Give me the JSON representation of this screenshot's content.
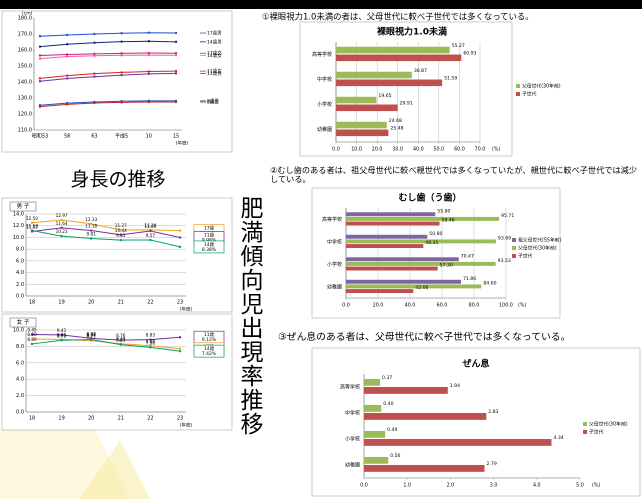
{
  "slide": {
    "height_heading": "身長の推移",
    "obesity_heading": "肥満傾向児出現率推移",
    "vision_heading": "①裸眼視力1.0未満の者は、父母世代に較べ子世代では多くなっている。",
    "caries_heading": "②むし歯のある者は、祖父母世代に較べ親世代では多くなっていたが、親世代に較べ子世代では減少している。",
    "asthma_heading": "③ぜん息のある者は、父母世代に較べ子世代では多くなっている。"
  },
  "chart_data": [
    {
      "type": "line",
      "y_label": "(cm)",
      "x_label": "(年度)",
      "categories": [
        "昭和53",
        "58",
        "63",
        "平成5",
        "10",
        "15"
      ],
      "ylim": [
        110,
        180
      ],
      "yticks": [
        {
          "value": 110,
          "label": "110.0"
        },
        {
          "value": 120,
          "label": "120.0"
        },
        {
          "value": 130,
          "label": "130.0"
        },
        {
          "value": 140,
          "label": "140.0"
        },
        {
          "value": 150,
          "label": "150.0"
        },
        {
          "value": 160,
          "label": "160.0"
        },
        {
          "value": 170,
          "label": "170.0"
        },
        {
          "value": 180,
          "label": "180.0"
        }
      ],
      "grid": false,
      "series": [
        {
          "name": "17歳男",
          "color": "#1f4fd0",
          "values": [
            168.6,
            169.4,
            170.0,
            170.5,
            170.8,
            170.6
          ]
        },
        {
          "name": "14歳男",
          "color": "#1a237e",
          "values": [
            162.1,
            163.6,
            164.5,
            165.2,
            165.5,
            165.1
          ]
        },
        {
          "name": "17歳女",
          "color": "#d01c8b",
          "values": [
            156.6,
            157.2,
            157.6,
            157.9,
            158.1,
            158.0
          ]
        },
        {
          "name": "14歳女",
          "color": "#f06090",
          "values": [
            154.6,
            155.9,
            156.4,
            156.7,
            156.8,
            156.7
          ]
        },
        {
          "name": "11歳女",
          "color": "#e02020",
          "values": [
            142.3,
            144.0,
            145.2,
            146.0,
            146.6,
            146.8
          ]
        },
        {
          "name": "11歳男",
          "color": "#7030a0",
          "values": [
            140.5,
            142.2,
            143.3,
            144.3,
            145.1,
            145.4
          ]
        },
        {
          "name": "8歳男",
          "color": "#2050c0",
          "values": [
            125.5,
            126.8,
            127.5,
            128.0,
            128.2,
            128.2
          ]
        },
        {
          "name": "8歳女",
          "color": "#c02030",
          "values": [
            124.6,
            126.0,
            126.9,
            127.3,
            127.5,
            127.5
          ]
        }
      ]
    },
    {
      "type": "line",
      "title": "男 子",
      "y_label": "(%)",
      "x_label": "(年度)",
      "categories": [
        "18",
        "19",
        "20",
        "21",
        "22",
        "23"
      ],
      "ylim": [
        0,
        14
      ],
      "yticks": [
        {
          "value": 0,
          "label": "0.0"
        },
        {
          "value": 2,
          "label": "2.0"
        },
        {
          "value": 4,
          "label": "4.0"
        },
        {
          "value": 6,
          "label": "6.0"
        },
        {
          "value": 8,
          "label": "8.0"
        },
        {
          "value": 10,
          "label": "10.0"
        },
        {
          "value": 12,
          "label": "12.0"
        },
        {
          "value": 14,
          "label": "14.0"
        }
      ],
      "grid": true,
      "series": [
        {
          "name": "17歳",
          "color": "#f0a020",
          "values": [
            12.5,
            12.97,
            12.33,
            11.27,
            11.3,
            11.16
          ],
          "value_labels": [
            "12.50",
            "12.97",
            "12.33",
            "11.27",
            "11.30",
            "11.16%"
          ]
        },
        {
          "name": "11歳",
          "color": "#7030a0",
          "values": [
            11.02,
            11.64,
            11.18,
            10.44,
            11.09,
            9.98
          ],
          "value_labels": [
            "11.02",
            "11.64",
            "11.18",
            "10.44",
            "11.09",
            "9.98%"
          ]
        },
        {
          "name": "14歳",
          "color": "#00a060",
          "values": [
            11.19,
            10.23,
            9.81,
            9.55,
            9.57,
            8.38
          ],
          "value_labels": [
            "11.19",
            "10.23",
            "9.81",
            "9.55",
            "9.57",
            "8.38%"
          ]
        }
      ]
    },
    {
      "type": "line",
      "title": "女 子",
      "y_label": "(%)",
      "x_label": "(年度)",
      "categories": [
        "18",
        "19",
        "20",
        "21",
        "22",
        "23"
      ],
      "ylim": [
        0,
        10
      ],
      "yticks": [
        {
          "value": 0,
          "label": "0.0"
        },
        {
          "value": 2,
          "label": "2.0"
        },
        {
          "value": 4,
          "label": "4.0"
        },
        {
          "value": 6,
          "label": "6.0"
        },
        {
          "value": 8,
          "label": "8.0"
        },
        {
          "value": 10,
          "label": "10.0"
        }
      ],
      "grid": true,
      "series": [
        {
          "name": "11歳",
          "color": "#7030a0",
          "values": [
            9.45,
            9.41,
            8.98,
            8.76,
            8.83,
            9.12
          ],
          "value_labels": [
            "9.45",
            "9.41",
            "8.98",
            "8.76",
            "8.83",
            "9.12%"
          ]
        },
        {
          "name": "17歳",
          "color": "#f0a020",
          "values": [
            8.9,
            8.85,
            8.71,
            8.33,
            8.08,
            7.71
          ],
          "value_labels": [
            "8.90",
            "8.85",
            "8.71",
            "8.33",
            "8.08",
            "7.71%"
          ]
        },
        {
          "name": "14歳",
          "color": "#00a060",
          "values": [
            8.3,
            8.75,
            8.84,
            8.21,
            7.88,
            7.42
          ],
          "value_labels": [
            "8.30",
            "8.75",
            "8.84",
            "8.21",
            "7.88",
            "7.42%"
          ]
        }
      ]
    },
    {
      "type": "hbar",
      "title": "裸眼視力1.0未満",
      "x_label": "(%)",
      "categories": [
        "高等学校",
        "中学校",
        "小学校",
        "幼稚園"
      ],
      "xlim": [
        0,
        70
      ],
      "xticks": [
        {
          "value": 0,
          "label": "0.0"
        },
        {
          "value": 10,
          "label": "10.0"
        },
        {
          "value": 20,
          "label": "20.0"
        },
        {
          "value": 30,
          "label": "30.0"
        },
        {
          "value": 40,
          "label": "40.0"
        },
        {
          "value": 50,
          "label": "50.0"
        },
        {
          "value": 60,
          "label": "60.0"
        },
        {
          "value": 70,
          "label": "70.0"
        }
      ],
      "grid": true,
      "series": [
        {
          "name": "父母世代(30年前)",
          "color": "#9bbb59",
          "values": [
            55.27,
            36.87,
            19.65,
            24.68
          ],
          "value_labels": [
            "55.27",
            "36.87",
            "19.65",
            "24.68"
          ]
        },
        {
          "name": "子世代",
          "color": "#c0504d",
          "values": [
            60.93,
            51.59,
            29.91,
            25.48
          ],
          "value_labels": [
            "60.93",
            "51.59",
            "29.91",
            "25.48"
          ]
        }
      ]
    },
    {
      "type": "hbar",
      "title": "むし歯（う歯）",
      "x_label": "(%)",
      "categories": [
        "高等学校",
        "中学校",
        "小学校",
        "幼稚園"
      ],
      "xlim": [
        0,
        100
      ],
      "xticks": [
        {
          "value": 0,
          "label": "0.0"
        },
        {
          "value": 20,
          "label": "20.0"
        },
        {
          "value": 40,
          "label": "40.0"
        },
        {
          "value": 60,
          "label": "60.0"
        },
        {
          "value": 80,
          "label": "80.0"
        },
        {
          "value": 100,
          "label": "100.0"
        }
      ],
      "grid": true,
      "series": [
        {
          "name": "祖父母世代(55年前)",
          "color": "#8064a2",
          "values": [
            55.8,
            50.8,
            70.47,
            71.86
          ],
          "value_labels": [
            "55.80",
            "50.80",
            "70.47",
            "71.86"
          ]
        },
        {
          "name": "父母世代(30年前)",
          "color": "#9bbb59",
          "values": [
            95.71,
            93.69,
            93.53,
            84.6
          ],
          "value_labels": [
            "95.71",
            "93.69",
            "93.53",
            "84.60"
          ]
        },
        {
          "name": "子世代",
          "color": "#c0504d",
          "values": [
            58.46,
            48.31,
            57.3,
            42.06
          ],
          "value_labels": [
            "58.46",
            "48.31",
            "57.30",
            "42.06"
          ]
        }
      ]
    },
    {
      "type": "hbar",
      "title": "ぜん息",
      "x_label": "(%)",
      "categories": [
        "高等学校",
        "中学校",
        "小学校",
        "幼稚園"
      ],
      "xlim": [
        0,
        5
      ],
      "xticks": [
        {
          "value": 0,
          "label": "0.0"
        },
        {
          "value": 1,
          "label": "1.0"
        },
        {
          "value": 2,
          "label": "2.0"
        },
        {
          "value": 3,
          "label": "3.0"
        },
        {
          "value": 4,
          "label": "4.0"
        },
        {
          "value": 5,
          "label": "5.0"
        }
      ],
      "grid": false,
      "series": [
        {
          "name": "父母世代(30年前)",
          "color": "#9bbb59",
          "values": [
            0.37,
            0.4,
            0.49,
            0.56
          ],
          "value_labels": [
            "0.37",
            "0.40",
            "0.49",
            "0.56"
          ]
        },
        {
          "name": "子世代",
          "color": "#c0504d",
          "values": [
            1.94,
            2.83,
            4.34,
            2.79
          ],
          "value_labels": [
            "1.94",
            "2.83",
            "4.34",
            "2.79"
          ]
        }
      ]
    }
  ]
}
